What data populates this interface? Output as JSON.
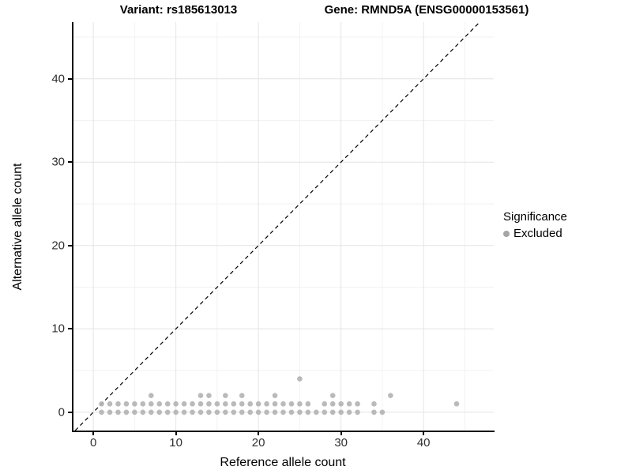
{
  "titles": {
    "variant": "Variant: rs185613013",
    "gene": "Gene: RMND5A (ENSG00000153561)"
  },
  "legend": {
    "title": "Significance",
    "items": [
      {
        "label": "Excluded",
        "color": "#a6a6a6"
      }
    ]
  },
  "colors": {
    "point": "#b3b3b3",
    "major_grid": "#e4e4e4",
    "minor_grid": "#f2f2f2",
    "identity_line": "#000000",
    "axis_text": "#303030"
  },
  "chart_data": {
    "type": "scatter",
    "title": "Variant: rs185613013 / Gene: RMND5A (ENSG00000153561)",
    "xlabel": "Reference allele count",
    "ylabel": "Alternative allele count",
    "xlim": [
      -2.5,
      48.5
    ],
    "ylim": [
      -2.2,
      46.8
    ],
    "x_ticks": [
      0,
      10,
      20,
      30,
      40
    ],
    "y_ticks": [
      0,
      10,
      20,
      30,
      40
    ],
    "x_minor_ticks": [
      5,
      15,
      25,
      35,
      45
    ],
    "y_minor_ticks": [
      5,
      15,
      25,
      35,
      45
    ],
    "grid": true,
    "legend_position": "right",
    "identity_line": {
      "type": "dashed",
      "slope": 1,
      "intercept": 0
    },
    "series": [
      {
        "name": "Excluded",
        "points": [
          [
            1,
            0
          ],
          [
            2,
            0
          ],
          [
            3,
            0
          ],
          [
            4,
            0
          ],
          [
            5,
            0
          ],
          [
            6,
            0
          ],
          [
            7,
            0
          ],
          [
            8,
            0
          ],
          [
            9,
            0
          ],
          [
            10,
            0
          ],
          [
            11,
            0
          ],
          [
            12,
            0
          ],
          [
            13,
            0
          ],
          [
            14,
            0
          ],
          [
            15,
            0
          ],
          [
            16,
            0
          ],
          [
            17,
            0
          ],
          [
            18,
            0
          ],
          [
            19,
            0
          ],
          [
            20,
            0
          ],
          [
            21,
            0
          ],
          [
            22,
            0
          ],
          [
            23,
            0
          ],
          [
            24,
            0
          ],
          [
            25,
            0
          ],
          [
            26,
            0
          ],
          [
            27,
            0
          ],
          [
            28,
            0
          ],
          [
            29,
            0
          ],
          [
            30,
            0
          ],
          [
            31,
            0
          ],
          [
            32,
            0
          ],
          [
            34,
            0
          ],
          [
            35,
            0
          ],
          [
            1,
            1
          ],
          [
            2,
            1
          ],
          [
            3,
            1
          ],
          [
            4,
            1
          ],
          [
            5,
            1
          ],
          [
            6,
            1
          ],
          [
            7,
            1
          ],
          [
            8,
            1
          ],
          [
            9,
            1
          ],
          [
            10,
            1
          ],
          [
            11,
            1
          ],
          [
            12,
            1
          ],
          [
            13,
            1
          ],
          [
            14,
            1
          ],
          [
            15,
            1
          ],
          [
            16,
            1
          ],
          [
            17,
            1
          ],
          [
            18,
            1
          ],
          [
            19,
            1
          ],
          [
            20,
            1
          ],
          [
            21,
            1
          ],
          [
            22,
            1
          ],
          [
            23,
            1
          ],
          [
            24,
            1
          ],
          [
            25,
            1
          ],
          [
            26,
            1
          ],
          [
            28,
            1
          ],
          [
            29,
            1
          ],
          [
            30,
            1
          ],
          [
            31,
            1
          ],
          [
            32,
            1
          ],
          [
            34,
            1
          ],
          [
            44,
            1
          ],
          [
            7,
            2
          ],
          [
            13,
            2
          ],
          [
            14,
            2
          ],
          [
            16,
            2
          ],
          [
            18,
            2
          ],
          [
            22,
            2
          ],
          [
            29,
            2
          ],
          [
            36,
            2
          ],
          [
            25,
            4
          ]
        ]
      }
    ]
  }
}
